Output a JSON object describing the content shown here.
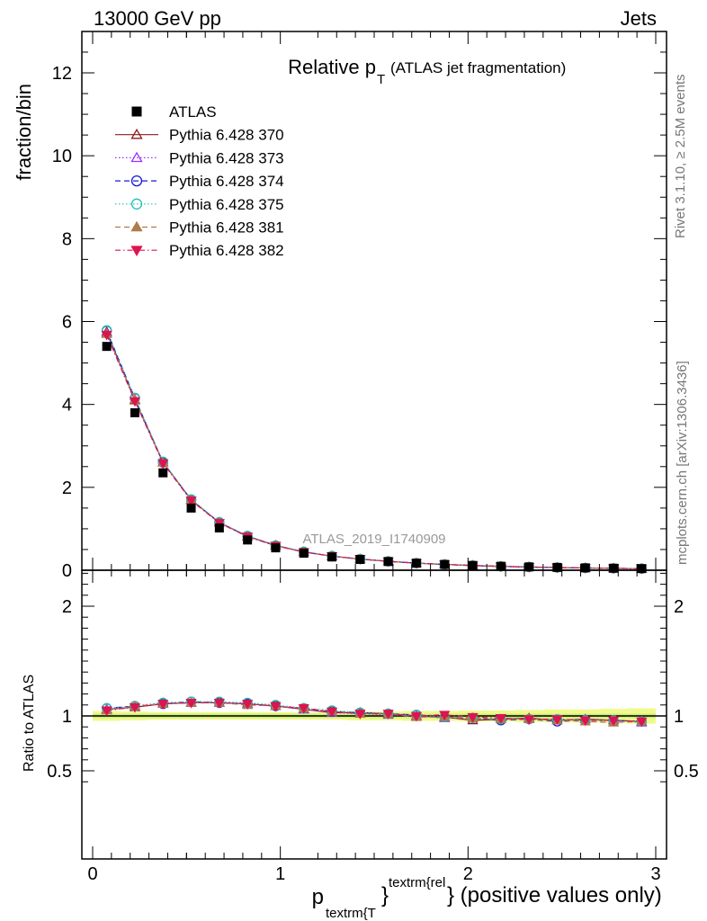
{
  "header": {
    "left": "13000 GeV pp",
    "right": "Jets"
  },
  "main_plot": {
    "title_main": "Relative p",
    "title_sub": "T",
    "title_rest": "(ATLAS jet fragmentation)",
    "ylabel": "fraction/bin",
    "watermark": "ATLAS_2019_I1740909"
  },
  "ratio_plot": {
    "ylabel": "Ratio to ATLAS"
  },
  "x_axis": {
    "label_p": "p",
    "label_sub": "textrm{T",
    "label_sup": "textrm{rel",
    "label_rest": "} (positive values only)",
    "brace": "}"
  },
  "side": {
    "rivet": "Rivet 3.1.10, ≥ 2.5M events",
    "mcplots": "mcplots.cern.ch [arXiv:1306.3436]"
  },
  "legend": [
    {
      "label": "ATLAS",
      "color": "#000000",
      "marker": "square-filled",
      "line": "none"
    },
    {
      "label": "Pythia 6.428 370",
      "color": "#8b1a1a",
      "marker": "triangle-up-open",
      "line": "solid"
    },
    {
      "label": "Pythia 6.428 373",
      "color": "#9b30ff",
      "marker": "triangle-up-open",
      "line": "dotted"
    },
    {
      "label": "Pythia 6.428 374",
      "color": "#1a1acd",
      "marker": "circle-open",
      "line": "dashed"
    },
    {
      "label": "Pythia 6.428 375",
      "color": "#20c0b0",
      "marker": "circle-open",
      "line": "dotted"
    },
    {
      "label": "Pythia 6.428 381",
      "color": "#b07a4a",
      "marker": "triangle-up-filled",
      "line": "dashed"
    },
    {
      "label": "Pythia 6.428 382",
      "color": "#dc1450",
      "marker": "triangle-down-filled",
      "line": "dashdot"
    }
  ],
  "chart_data": {
    "type": "scatter",
    "x": [
      0.075,
      0.225,
      0.375,
      0.525,
      0.675,
      0.825,
      0.975,
      1.125,
      1.275,
      1.425,
      1.575,
      1.725,
      1.875,
      2.025,
      2.175,
      2.325,
      2.475,
      2.625,
      2.775,
      2.925
    ],
    "xlim": [
      -0.05,
      3.05
    ],
    "xticks": [
      0,
      1,
      2,
      3
    ],
    "main": {
      "ylim": [
        0,
        13
      ],
      "yticks": [
        0,
        2,
        4,
        6,
        8,
        10,
        12
      ],
      "data": {
        "name": "ATLAS",
        "values": [
          5.4,
          3.8,
          2.35,
          1.5,
          1.02,
          0.73,
          0.54,
          0.41,
          0.32,
          0.26,
          0.21,
          0.17,
          0.14,
          0.115,
          0.095,
          0.08,
          0.068,
          0.057,
          0.048,
          0.04
        ]
      },
      "series": [
        {
          "name": "Pythia 6.428 370",
          "values": [
            5.75,
            4.1,
            2.6,
            1.7,
            1.15,
            0.82,
            0.6,
            0.44,
            0.34,
            0.27,
            0.215,
            0.172,
            0.141,
            0.114,
            0.093,
            0.078,
            0.066,
            0.055,
            0.046,
            0.038
          ]
        },
        {
          "name": "Pythia 6.428 373",
          "values": [
            5.72,
            4.12,
            2.61,
            1.69,
            1.16,
            0.82,
            0.6,
            0.44,
            0.34,
            0.27,
            0.214,
            0.171,
            0.139,
            0.113,
            0.092,
            0.078,
            0.065,
            0.055,
            0.046,
            0.037
          ]
        },
        {
          "name": "Pythia 6.428 374",
          "values": [
            5.78,
            4.15,
            2.6,
            1.7,
            1.15,
            0.82,
            0.59,
            0.44,
            0.34,
            0.27,
            0.214,
            0.171,
            0.139,
            0.113,
            0.092,
            0.077,
            0.064,
            0.055,
            0.046,
            0.038
          ]
        },
        {
          "name": "Pythia 6.428 375",
          "values": [
            5.79,
            4.16,
            2.62,
            1.71,
            1.16,
            0.83,
            0.6,
            0.45,
            0.345,
            0.27,
            0.215,
            0.172,
            0.14,
            0.114,
            0.093,
            0.078,
            0.066,
            0.055,
            0.046,
            0.038
          ]
        },
        {
          "name": "Pythia 6.428 381",
          "values": [
            5.7,
            4.12,
            2.6,
            1.69,
            1.15,
            0.81,
            0.59,
            0.44,
            0.34,
            0.265,
            0.213,
            0.169,
            0.14,
            0.113,
            0.092,
            0.078,
            0.065,
            0.054,
            0.045,
            0.038
          ]
        },
        {
          "name": "Pythia 6.428 382",
          "values": [
            5.68,
            4.08,
            2.58,
            1.68,
            1.14,
            0.81,
            0.59,
            0.44,
            0.34,
            0.27,
            0.214,
            0.17,
            0.141,
            0.114,
            0.093,
            0.078,
            0.066,
            0.055,
            0.046,
            0.038
          ]
        }
      ]
    },
    "ratio": {
      "ylim": [
        0.35,
        2.35
      ],
      "yticks": [
        0.5,
        1,
        2
      ],
      "reference": 1,
      "band_outer": [
        0.045,
        0.04,
        0.035,
        0.035,
        0.035,
        0.035,
        0.035,
        0.035,
        0.035,
        0.04,
        0.04,
        0.045,
        0.045,
        0.05,
        0.05,
        0.055,
        0.06,
        0.06,
        0.065,
        0.07
      ],
      "band_inner": [
        0.02,
        0.02,
        0.02,
        0.02,
        0.02,
        0.02,
        0.02,
        0.02,
        0.02,
        0.02,
        0.02,
        0.02,
        0.02,
        0.02,
        0.02,
        0.02,
        0.02,
        0.02,
        0.02,
        0.02
      ],
      "series": [
        {
          "name": "Pythia 6.428 370",
          "values": [
            1.06,
            1.08,
            1.11,
            1.12,
            1.12,
            1.11,
            1.09,
            1.06,
            1.03,
            1.03,
            1.02,
            1.0,
            0.99,
            0.96,
            0.97,
            0.98,
            0.96,
            0.97,
            0.96,
            0.95
          ]
        },
        {
          "name": "Pythia 6.428 373",
          "values": [
            1.06,
            1.09,
            1.12,
            1.12,
            1.12,
            1.11,
            1.09,
            1.06,
            1.03,
            1.02,
            1.01,
            1.0,
            0.98,
            0.98,
            0.97,
            0.97,
            0.96,
            0.97,
            0.96,
            0.94
          ]
        },
        {
          "name": "Pythia 6.428 374",
          "values": [
            1.07,
            1.09,
            1.11,
            1.13,
            1.12,
            1.11,
            1.09,
            1.07,
            1.04,
            1.03,
            1.02,
            1.01,
            0.99,
            0.98,
            0.96,
            0.97,
            0.95,
            0.96,
            0.96,
            0.95
          ]
        },
        {
          "name": "Pythia 6.428 375",
          "values": [
            1.07,
            1.09,
            1.12,
            1.13,
            1.13,
            1.12,
            1.1,
            1.07,
            1.05,
            1.03,
            1.02,
            1.01,
            0.99,
            0.98,
            0.97,
            0.97,
            0.97,
            0.96,
            0.96,
            0.95
          ]
        },
        {
          "name": "Pythia 6.428 381",
          "values": [
            1.05,
            1.09,
            1.11,
            1.12,
            1.12,
            1.1,
            1.09,
            1.07,
            1.04,
            1.02,
            1.02,
            0.99,
            0.99,
            0.98,
            0.97,
            0.97,
            0.96,
            0.95,
            0.94,
            0.95
          ]
        },
        {
          "name": "Pythia 6.428 382",
          "values": [
            1.05,
            1.08,
            1.11,
            1.12,
            1.12,
            1.11,
            1.09,
            1.07,
            1.04,
            1.02,
            1.02,
            1.0,
            1.01,
            0.99,
            0.98,
            0.97,
            0.97,
            0.96,
            0.96,
            0.95
          ]
        }
      ]
    }
  }
}
